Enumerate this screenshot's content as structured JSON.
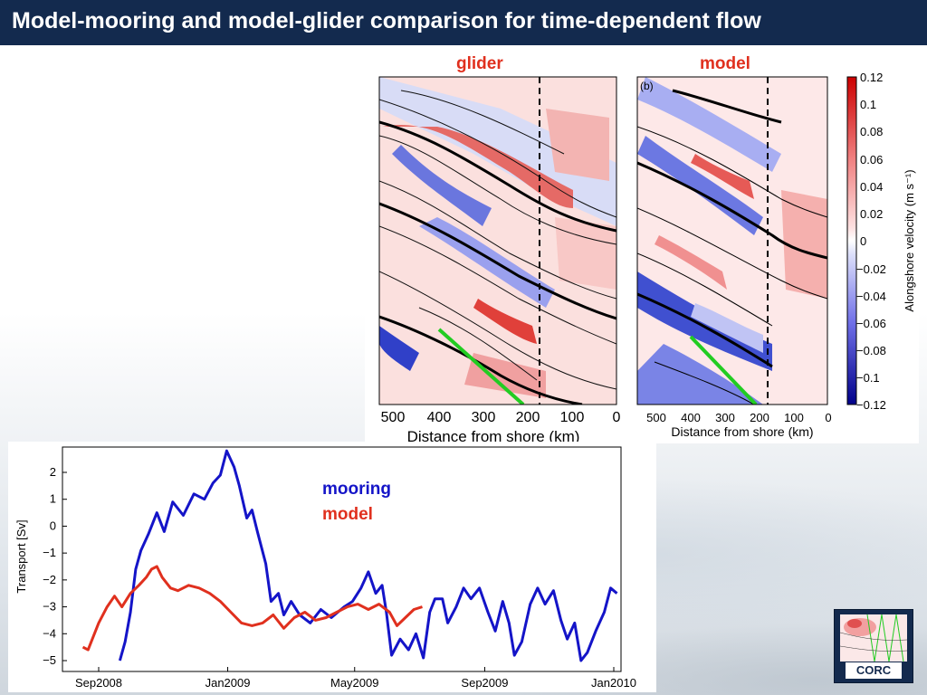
{
  "title": "Model-mooring and model-glider comparison for time-dependent flow",
  "labels": {
    "glider": "glider",
    "model": "model",
    "mooring": "mooring",
    "model2": "model",
    "panel_b": "(b)"
  },
  "colors": {
    "title_bg": "#132a4e",
    "red": "#e0301e",
    "blue": "#1414c8",
    "green": "#22cc22"
  },
  "section_chart": {
    "xlabel": "Distance from shore (km)",
    "xticks": [
      "500",
      "400",
      "300",
      "200",
      "100",
      "0"
    ],
    "colorbar": {
      "label": "Alongshore velocity (m s⁻¹)",
      "ticks": [
        "0.12",
        "0.1",
        "0.08",
        "0.06",
        "0.04",
        "0.02",
        "0",
        "−0.02",
        "−0.04",
        "−0.06",
        "−0.08",
        "−0.1",
        "−0.12"
      ]
    }
  },
  "chart_data": {
    "type": "line",
    "ylabel": "Transport [Sv]",
    "xlabel": "",
    "ylim": [
      -5,
      3
    ],
    "yticks": [
      "2",
      "1",
      "0",
      "−1",
      "−2",
      "−3",
      "−4",
      "−5"
    ],
    "xticks": [
      "Sep2008",
      "Jan2009",
      "May2009",
      "Sep2009",
      "Jan2010"
    ],
    "xtick_days": [
      0,
      122,
      242,
      365,
      487
    ],
    "series": [
      {
        "name": "mooring",
        "color": "#1414c8",
        "points": [
          [
            20,
            -5
          ],
          [
            25,
            -4.3
          ],
          [
            30,
            -3.2
          ],
          [
            35,
            -1.6
          ],
          [
            40,
            -0.9
          ],
          [
            47,
            -0.3
          ],
          [
            55,
            0.5
          ],
          [
            62,
            -0.2
          ],
          [
            70,
            0.9
          ],
          [
            80,
            0.4
          ],
          [
            90,
            1.2
          ],
          [
            100,
            1.0
          ],
          [
            108,
            1.6
          ],
          [
            115,
            1.9
          ],
          [
            121,
            2.8
          ],
          [
            128,
            2.2
          ],
          [
            133,
            1.5
          ],
          [
            140,
            0.3
          ],
          [
            145,
            0.6
          ],
          [
            150,
            -0.2
          ],
          [
            158,
            -1.4
          ],
          [
            163,
            -2.8
          ],
          [
            170,
            -2.5
          ],
          [
            175,
            -3.3
          ],
          [
            182,
            -2.8
          ],
          [
            190,
            -3.3
          ],
          [
            200,
            -3.6
          ],
          [
            210,
            -3.1
          ],
          [
            220,
            -3.4
          ],
          [
            232,
            -3.0
          ],
          [
            240,
            -2.8
          ],
          [
            248,
            -2.3
          ],
          [
            255,
            -1.7
          ],
          [
            262,
            -2.5
          ],
          [
            268,
            -2.2
          ],
          [
            272,
            -3.2
          ],
          [
            277,
            -4.8
          ],
          [
            285,
            -4.2
          ],
          [
            293,
            -4.6
          ],
          [
            300,
            -4.0
          ],
          [
            307,
            -4.9
          ],
          [
            313,
            -3.2
          ],
          [
            318,
            -2.7
          ],
          [
            325,
            -2.7
          ],
          [
            330,
            -3.6
          ],
          [
            338,
            -3.0
          ],
          [
            345,
            -2.3
          ],
          [
            352,
            -2.7
          ],
          [
            360,
            -2.3
          ],
          [
            368,
            -3.2
          ],
          [
            375,
            -3.9
          ],
          [
            382,
            -2.8
          ],
          [
            388,
            -3.6
          ],
          [
            393,
            -4.8
          ],
          [
            400,
            -4.3
          ],
          [
            408,
            -2.9
          ],
          [
            415,
            -2.3
          ],
          [
            422,
            -2.9
          ],
          [
            430,
            -2.4
          ],
          [
            437,
            -3.5
          ],
          [
            443,
            -4.2
          ],
          [
            450,
            -3.6
          ],
          [
            456,
            -5.0
          ],
          [
            462,
            -4.7
          ],
          [
            470,
            -3.9
          ],
          [
            478,
            -3.2
          ],
          [
            484,
            -2.3
          ],
          [
            490,
            -2.5
          ]
        ]
      },
      {
        "name": "model",
        "color": "#e0301e",
        "points": [
          [
            -15,
            -4.5
          ],
          [
            -10,
            -4.6
          ],
          [
            0,
            -3.6
          ],
          [
            8,
            -3.0
          ],
          [
            15,
            -2.6
          ],
          [
            22,
            -3.0
          ],
          [
            30,
            -2.5
          ],
          [
            38,
            -2.2
          ],
          [
            45,
            -1.9
          ],
          [
            50,
            -1.6
          ],
          [
            55,
            -1.5
          ],
          [
            60,
            -1.9
          ],
          [
            68,
            -2.3
          ],
          [
            75,
            -2.4
          ],
          [
            85,
            -2.2
          ],
          [
            95,
            -2.3
          ],
          [
            105,
            -2.5
          ],
          [
            115,
            -2.8
          ],
          [
            125,
            -3.2
          ],
          [
            135,
            -3.6
          ],
          [
            145,
            -3.7
          ],
          [
            155,
            -3.6
          ],
          [
            165,
            -3.3
          ],
          [
            175,
            -3.8
          ],
          [
            185,
            -3.4
          ],
          [
            195,
            -3.2
          ],
          [
            205,
            -3.5
          ],
          [
            215,
            -3.4
          ],
          [
            225,
            -3.2
          ],
          [
            235,
            -3.0
          ],
          [
            245,
            -2.9
          ],
          [
            255,
            -3.1
          ],
          [
            265,
            -2.9
          ],
          [
            275,
            -3.2
          ],
          [
            282,
            -3.7
          ],
          [
            290,
            -3.4
          ],
          [
            298,
            -3.1
          ],
          [
            306,
            -3.0
          ]
        ]
      }
    ]
  }
}
